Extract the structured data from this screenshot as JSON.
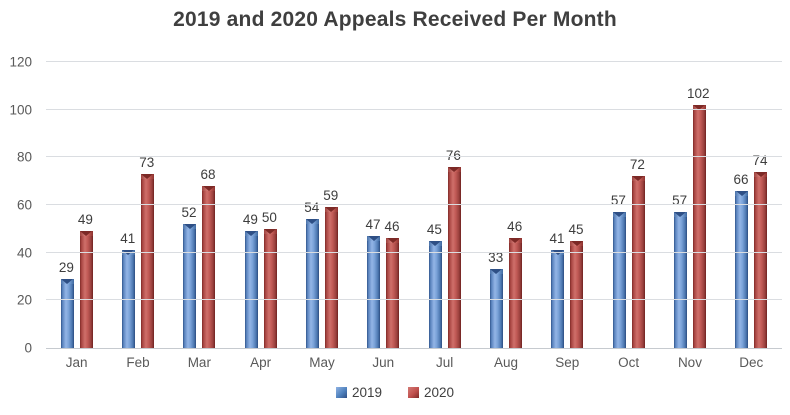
{
  "title": "2019 and 2020 Appeals Received Per Month",
  "colors": {
    "background": "#ffffff",
    "title_text": "#3f3f3f",
    "tick_text": "#595959",
    "data_label_text": "#3d3d3d",
    "gridline": "#dadde1",
    "axis_line": "#c6cacf",
    "series_2019": "#4F81BD",
    "series_2020": "#C0504D"
  },
  "chart_data": {
    "type": "bar",
    "title": "2019 and 2020 Appeals Received Per Month",
    "categories": [
      "Jan",
      "Feb",
      "Mar",
      "Apr",
      "May",
      "Jun",
      "Jul",
      "Aug",
      "Sep",
      "Oct",
      "Nov",
      "Dec"
    ],
    "series": [
      {
        "name": "2019",
        "color": "#4F81BD",
        "values": [
          29,
          41,
          52,
          49,
          54,
          47,
          45,
          33,
          41,
          57,
          57,
          66
        ]
      },
      {
        "name": "2020",
        "color": "#C0504D",
        "values": [
          49,
          73,
          68,
          50,
          59,
          46,
          76,
          46,
          45,
          72,
          102,
          74
        ]
      }
    ],
    "xlabel": "",
    "ylabel": "",
    "ylim": [
      0,
      120
    ],
    "yticks": [
      0,
      20,
      40,
      60,
      80,
      100,
      120
    ],
    "grid": true,
    "data_labels": true,
    "legend_position": "bottom"
  },
  "legend": {
    "items": [
      {
        "label": "2019"
      },
      {
        "label": "2020"
      }
    ]
  }
}
